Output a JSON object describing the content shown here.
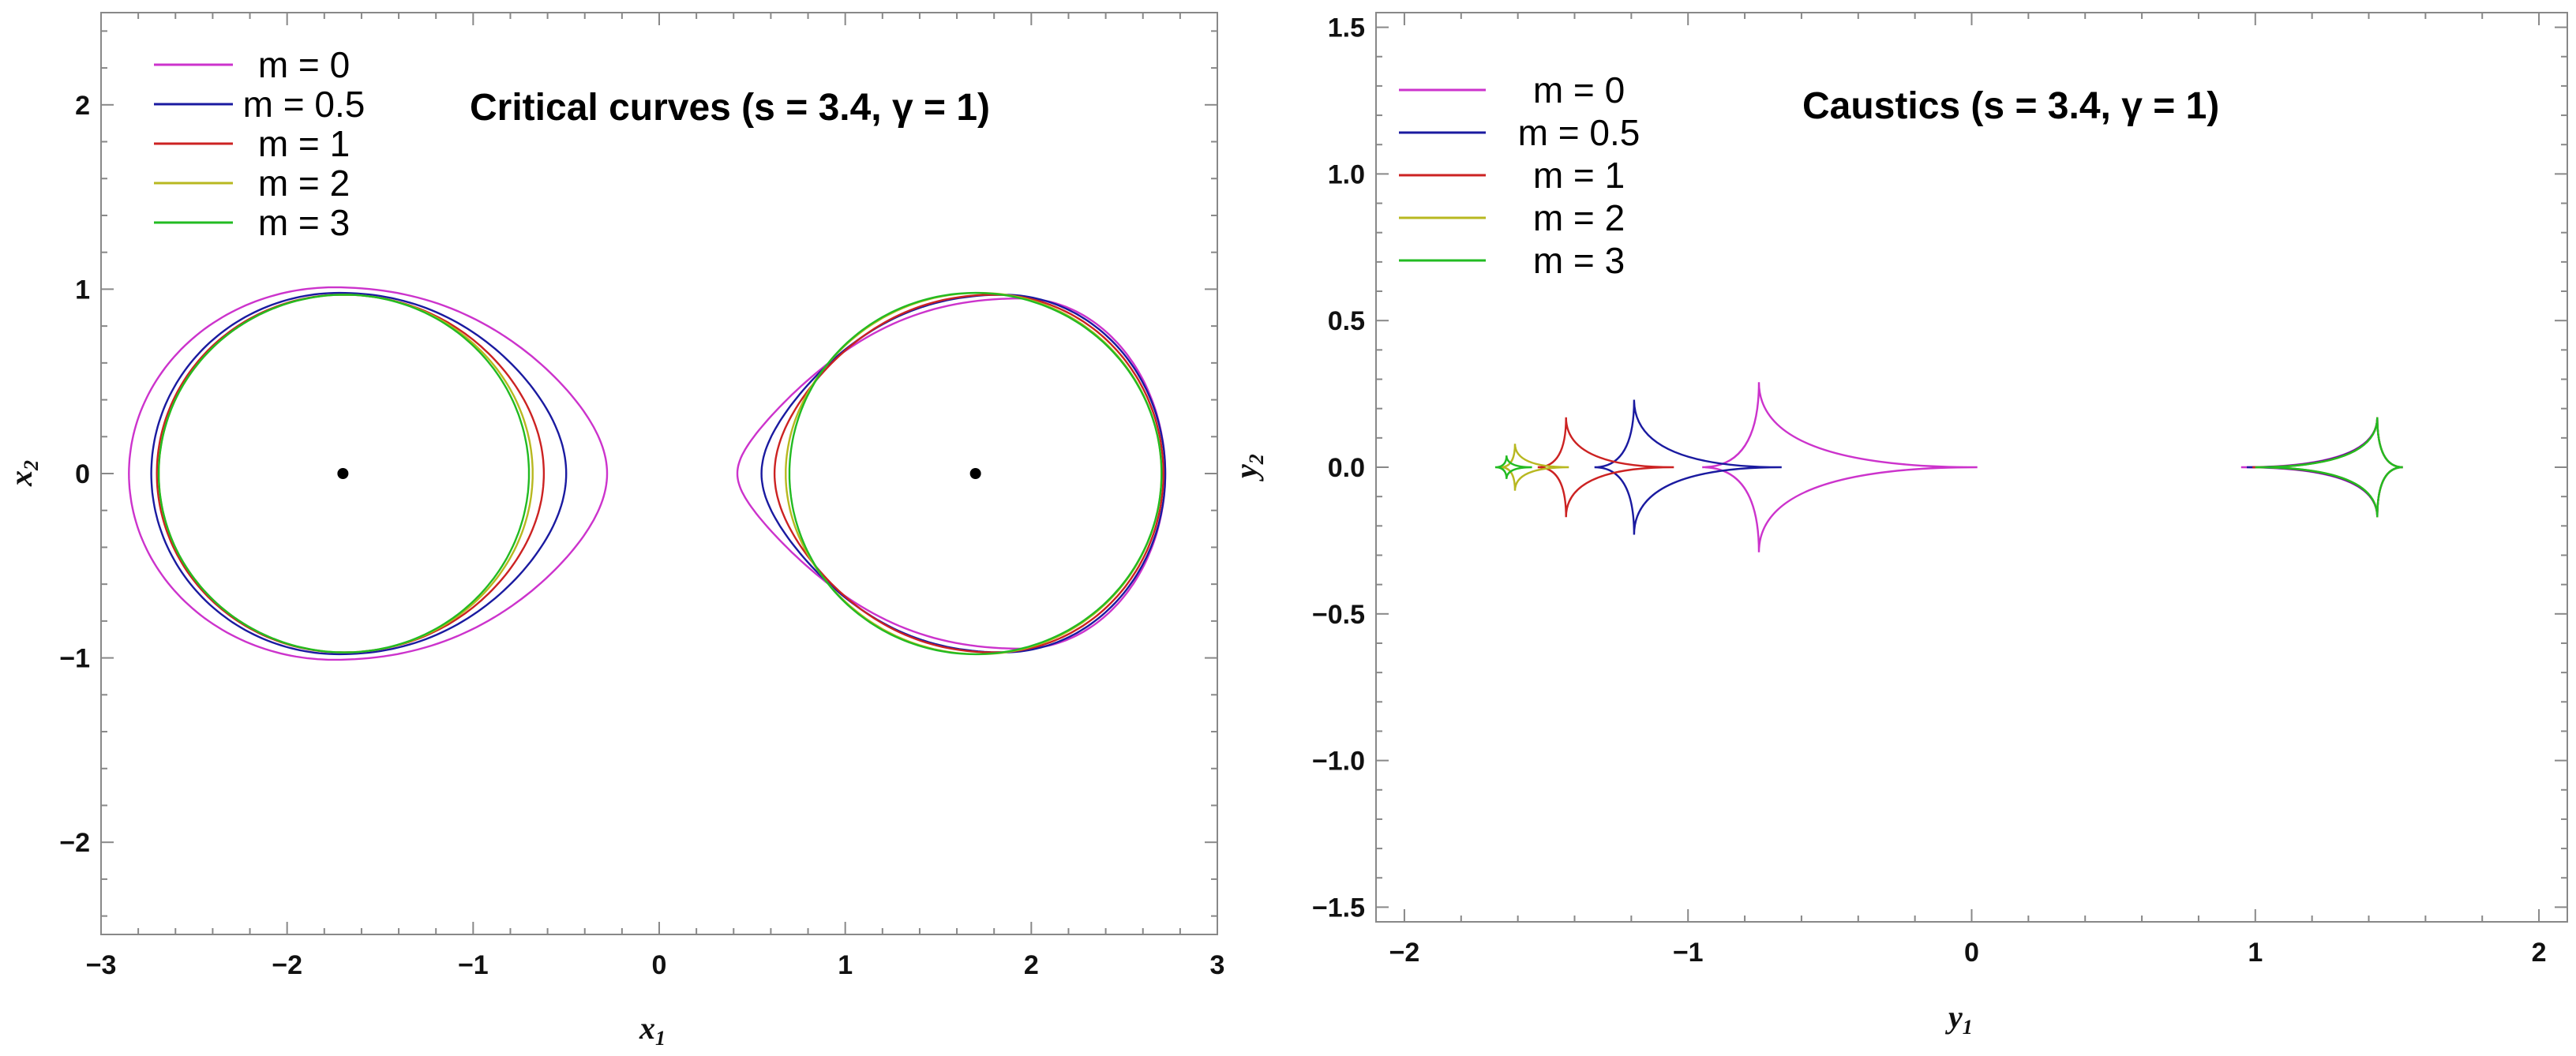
{
  "chart_data": [
    {
      "type": "line",
      "title": "Critical curves (s = 3.4, γ = 1)",
      "xlabel": "x",
      "xlabel_sub": "1",
      "ylabel": "x",
      "ylabel_sub": "2",
      "xlim": [
        -3,
        3
      ],
      "ylim": [
        -2.5,
        2.5
      ],
      "xticks": [
        -3,
        -2,
        -1,
        0,
        1,
        2,
        3
      ],
      "xtick_labels": [
        "−3",
        "−2",
        "−1",
        "0",
        "1",
        "2",
        "3"
      ],
      "yticks": [
        -2,
        -1,
        0,
        1,
        2
      ],
      "ytick_labels": [
        "−2",
        "−1",
        "0",
        "1",
        "2"
      ],
      "legend_position": "top-left",
      "grid": false,
      "points": [
        {
          "name": "lens-left",
          "x": -1.7,
          "y": 0
        },
        {
          "name": "lens-right",
          "x": 1.7,
          "y": 0
        }
      ],
      "series": [
        {
          "name": "m = 0",
          "color": "#cc33cc",
          "left": {
            "xmin": -2.85,
            "xmax": -0.28,
            "ymax": 1.01,
            "peak_x": -1.75
          },
          "right": {
            "xmin": 0.42,
            "xmax": 2.72,
            "ymax": 0.95,
            "peak_x": 1.95
          }
        },
        {
          "name": "m = 0.5",
          "color": "#1a1aa0",
          "left": {
            "xmin": -2.73,
            "xmax": -0.5,
            "ymax": 0.98,
            "peak_x": -1.72
          },
          "right": {
            "xmin": 0.55,
            "xmax": 2.72,
            "ymax": 0.97,
            "peak_x": 1.85
          }
        },
        {
          "name": "m = 1",
          "color": "#cc2222",
          "left": {
            "xmin": -2.7,
            "xmax": -0.62,
            "ymax": 0.97,
            "peak_x": -1.7
          },
          "right": {
            "xmin": 0.62,
            "xmax": 2.71,
            "ymax": 0.97,
            "peak_x": 1.8
          }
        },
        {
          "name": "m = 2",
          "color": "#b8b820",
          "left": {
            "xmin": -2.69,
            "xmax": -0.68,
            "ymax": 0.97,
            "peak_x": -1.69
          },
          "right": {
            "xmin": 0.68,
            "xmax": 2.7,
            "ymax": 0.98,
            "peak_x": 1.72
          }
        },
        {
          "name": "m = 3",
          "color": "#22bb22",
          "left": {
            "xmin": -2.69,
            "xmax": -0.7,
            "ymax": 0.97,
            "peak_x": -1.69
          },
          "right": {
            "xmin": 0.7,
            "xmax": 2.7,
            "ymax": 0.98,
            "peak_x": 1.7
          }
        }
      ]
    },
    {
      "type": "line",
      "title": "Caustics (s = 3.4, γ = 1)",
      "xlabel": "y",
      "xlabel_sub": "1",
      "ylabel": "y",
      "ylabel_sub": "2",
      "xlim": [
        -2.1,
        2.1
      ],
      "ylim": [
        -1.55,
        1.55
      ],
      "xticks": [
        -2,
        -1,
        0,
        1,
        2
      ],
      "xtick_labels": [
        "−2",
        "−1",
        "0",
        "1",
        "2"
      ],
      "yticks": [
        -1.5,
        -1.0,
        -0.5,
        0.0,
        0.5,
        1.0,
        1.5
      ],
      "ytick_labels": [
        "−1.5",
        "−1.0",
        "−0.5",
        "0.0",
        "0.5",
        "1.0",
        "1.5"
      ],
      "legend_position": "top-left",
      "grid": false,
      "series": [
        {
          "name": "m = 0",
          "color": "#cc33cc",
          "left": {
            "x_left": -0.95,
            "x_right": 0.02,
            "x_mid": -0.75,
            "half_height": 0.29
          },
          "right": {
            "x_left": 0.95,
            "x_right": 1.52,
            "x_mid": 1.43,
            "half_height": 0.17
          }
        },
        {
          "name": "m = 0.5",
          "color": "#1a1aa0",
          "left": {
            "x_left": -1.33,
            "x_right": -0.67,
            "x_mid": -1.19,
            "half_height": 0.23
          },
          "right": {
            "x_left": 0.97,
            "x_right": 1.52,
            "x_mid": 1.43,
            "half_height": 0.17
          }
        },
        {
          "name": "m = 1",
          "color": "#cc2222",
          "left": {
            "x_left": -1.53,
            "x_right": -1.05,
            "x_mid": -1.43,
            "half_height": 0.17
          },
          "right": {
            "x_left": 0.99,
            "x_right": 1.52,
            "x_mid": 1.43,
            "half_height": 0.17
          }
        },
        {
          "name": "m = 2",
          "color": "#b8b820",
          "left": {
            "x_left": -1.66,
            "x_right": -1.42,
            "x_mid": -1.61,
            "half_height": 0.08
          },
          "right": {
            "x_left": 1.0,
            "x_right": 1.52,
            "x_mid": 1.43,
            "half_height": 0.17
          }
        },
        {
          "name": "m = 3",
          "color": "#22bb22",
          "left": {
            "x_left": -1.68,
            "x_right": -1.55,
            "x_mid": -1.64,
            "half_height": 0.04
          },
          "right": {
            "x_left": 1.0,
            "x_right": 1.52,
            "x_mid": 1.43,
            "half_height": 0.17
          }
        }
      ]
    }
  ]
}
